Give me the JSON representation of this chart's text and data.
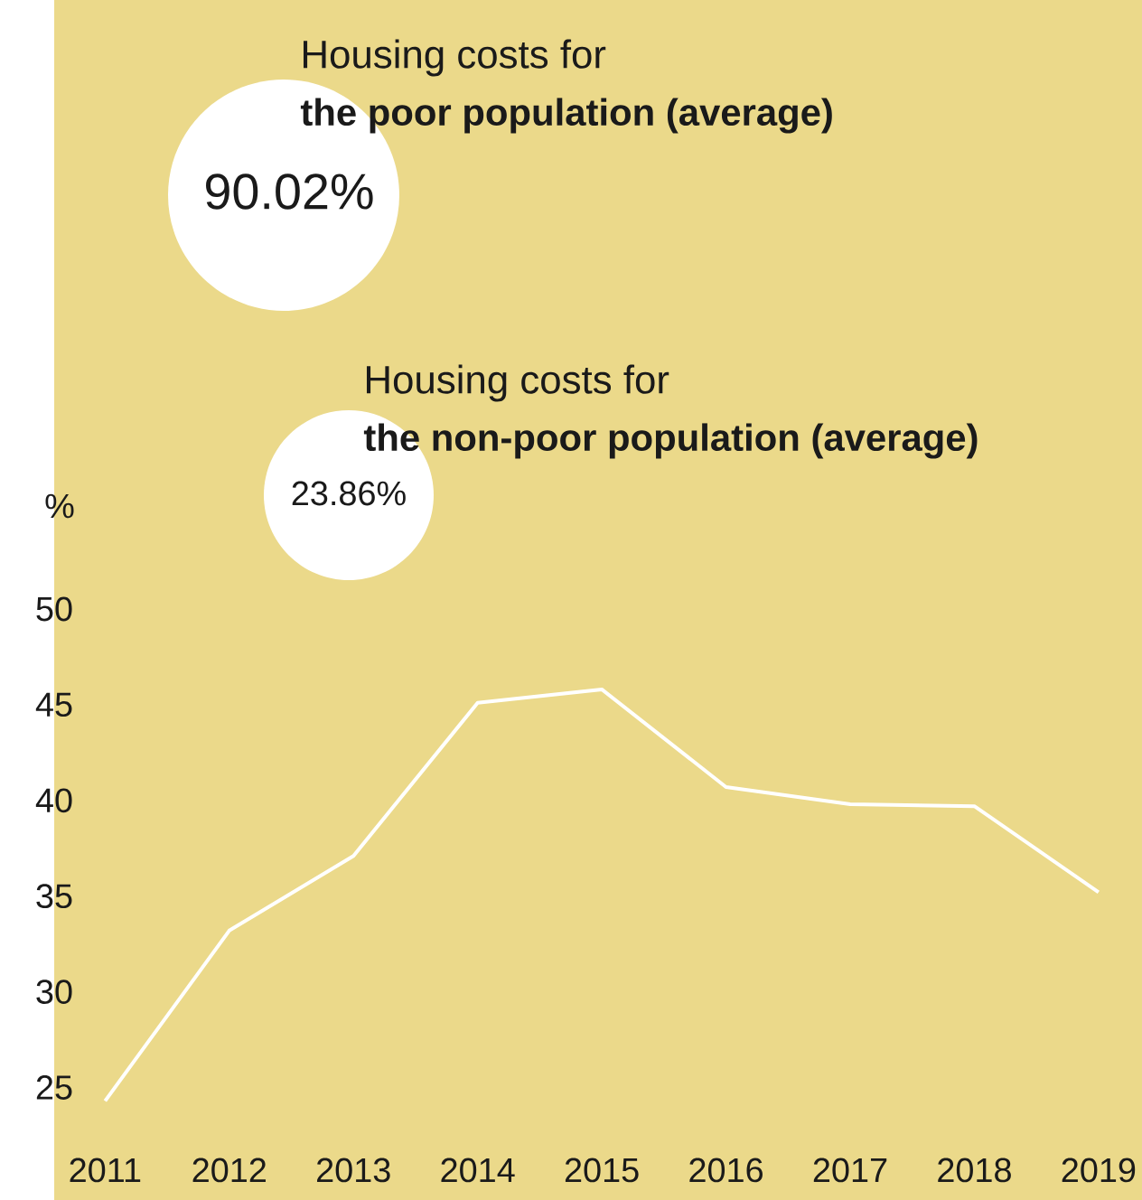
{
  "chart_data": {
    "type": "line",
    "ylabel": "%",
    "categories": [
      "2011",
      "2012",
      "2013",
      "2014",
      "2015",
      "2016",
      "2017",
      "2018",
      "2019"
    ],
    "series": [
      {
        "color": "#ffffff",
        "values": [
          24.3,
          33.2,
          37.1,
          45.1,
          45.8,
          40.7,
          39.8,
          39.7,
          35.2
        ]
      }
    ],
    "ylim": [
      19.5,
      50
    ],
    "yticks": [
      25,
      30,
      35,
      40,
      45,
      50
    ],
    "grid": false,
    "marker": "none",
    "line_style": "solid",
    "annotations": [
      "Housing costs for",
      "the poor population (average)",
      "90.02%",
      "Housing costs for",
      "the non-poor population (average)",
      "23.86%"
    ]
  }
}
